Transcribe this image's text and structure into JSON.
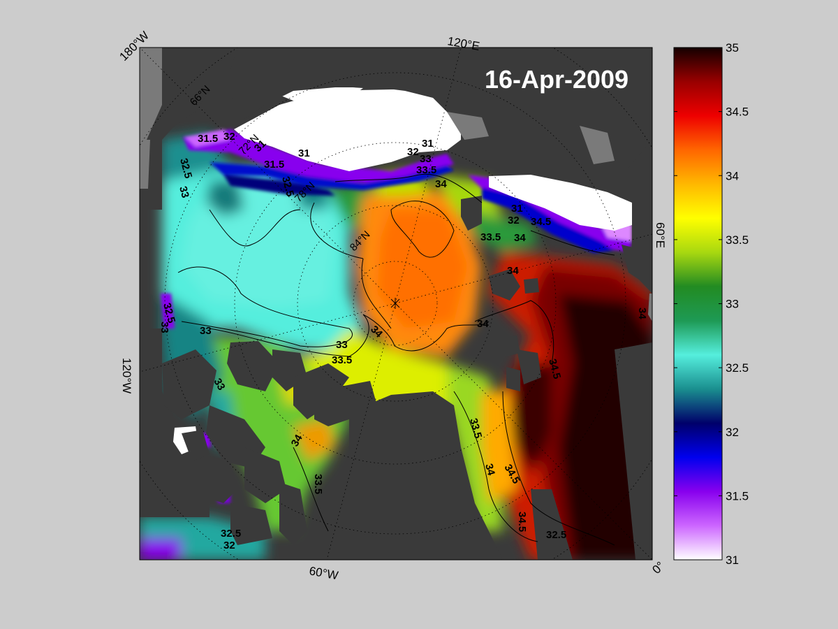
{
  "title": "16-Apr-2009",
  "longitude_labels": [
    "180°W",
    "120°E",
    "60°E",
    "0°",
    "60°W",
    "120°W"
  ],
  "latitude_labels": [
    "66°N",
    "72°N",
    "78°N",
    "84°N"
  ],
  "colorbar": {
    "min": 31,
    "max": 35,
    "ticks": [
      "31",
      "31.5",
      "32",
      "32.5",
      "33",
      "33.5",
      "34",
      "34.5",
      "35"
    ],
    "colormap": [
      "#ffffff",
      "#cc66ff",
      "#8800ee",
      "#0000ee",
      "#00006a",
      "#1a8f8f",
      "#55eedd",
      "#1e9a55",
      "#228b22",
      "#a8d810",
      "#ffff00",
      "#ffb800",
      "#ff6600",
      "#ee0000",
      "#990000",
      "#140000"
    ]
  },
  "colors": {
    "background": "#cccccc",
    "land": "#3a3a3a",
    "land_grey": "#7a7a7a",
    "sea_ice": "#ffffff"
  },
  "contour_labels": [
    {
      "id": "c1",
      "text": "31.5"
    },
    {
      "id": "c2",
      "text": "32"
    },
    {
      "id": "c3",
      "text": "31"
    },
    {
      "id": "c4",
      "text": "32.5"
    },
    {
      "id": "c5",
      "text": "33"
    },
    {
      "id": "c6",
      "text": "31"
    },
    {
      "id": "c7",
      "text": "31.5"
    },
    {
      "id": "c8",
      "text": "32.5"
    },
    {
      "id": "c9",
      "text": "31"
    },
    {
      "id": "c10",
      "text": "32"
    },
    {
      "id": "c11",
      "text": "33"
    },
    {
      "id": "c12",
      "text": "33.5"
    },
    {
      "id": "c13",
      "text": "34"
    },
    {
      "id": "c14",
      "text": "31"
    },
    {
      "id": "c15",
      "text": "32"
    },
    {
      "id": "c16",
      "text": "34.5"
    },
    {
      "id": "c17",
      "text": "33.5"
    },
    {
      "id": "c18",
      "text": "34"
    },
    {
      "id": "c19",
      "text": "34"
    },
    {
      "id": "c20",
      "text": "34"
    },
    {
      "id": "c21",
      "text": "32.5"
    },
    {
      "id": "c22",
      "text": "33"
    },
    {
      "id": "c23",
      "text": "33"
    },
    {
      "id": "c24",
      "text": "34"
    },
    {
      "id": "c25",
      "text": "33.5"
    },
    {
      "id": "c26",
      "text": "34.5"
    },
    {
      "id": "c27",
      "text": "33"
    },
    {
      "id": "c28",
      "text": "34"
    },
    {
      "id": "c29",
      "text": "33.5"
    },
    {
      "id": "c30",
      "text": "33.5"
    },
    {
      "id": "c31",
      "text": "34"
    },
    {
      "id": "c32",
      "text": "34"
    },
    {
      "id": "c33",
      "text": "34.5"
    },
    {
      "id": "c34",
      "text": "34.5"
    },
    {
      "id": "c35",
      "text": "32.5"
    },
    {
      "id": "c36",
      "text": "33"
    },
    {
      "id": "c37",
      "text": "32.5"
    },
    {
      "id": "c38",
      "text": "32"
    }
  ]
}
